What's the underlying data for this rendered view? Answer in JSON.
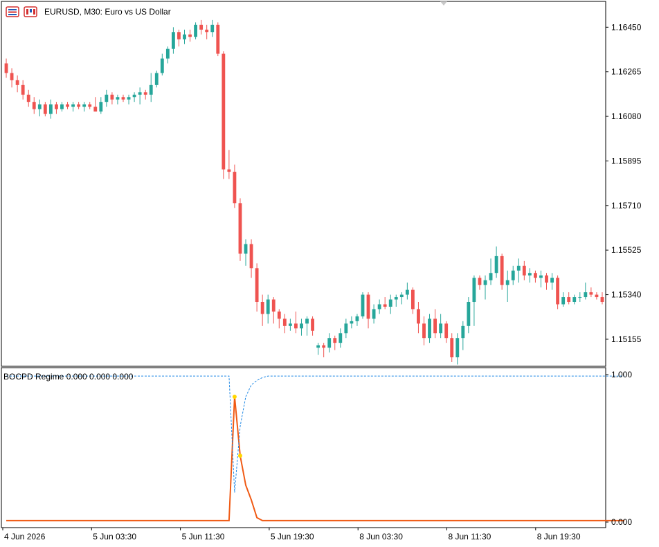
{
  "header": {
    "symbol_title": "EURUSD, M30:  Euro vs US Dollar",
    "icons": [
      "one-click-trading-icon",
      "chart-properties-icon"
    ]
  },
  "indicator": {
    "title": "BOCPD Regime 0.000 0.000 0.000",
    "axis_labels": [
      "1.000",
      "0.000"
    ]
  },
  "colors": {
    "bull": "#26a69a",
    "bear": "#ef5350",
    "grid": "#e8e8e8",
    "prob_line": "#f05a14",
    "dotted_line": "#1e88e5",
    "marker": "#ffd700"
  },
  "chart_data": [
    {
      "type": "candlestick",
      "symbol": "EURUSD",
      "timeframe": "M30",
      "ylim": [
        1.1506,
        1.1654
      ],
      "y_ticks": [
        "1.16450",
        "1.16265",
        "1.16080",
        "1.15895",
        "1.15710",
        "1.15525",
        "1.15340",
        "1.15155"
      ],
      "x_ticks": [
        "4 Jun 2026",
        "5 Jun 03:30",
        "5 Jun 11:30",
        "5 Jun 19:30",
        "8 Jun 03:30",
        "8 Jun 11:30",
        "8 Jun 19:30"
      ],
      "grid": true,
      "candles": [
        [
          1.163,
          1.1632,
          1.1624,
          1.1626
        ],
        [
          1.1626,
          1.1628,
          1.162,
          1.1623
        ],
        [
          1.1623,
          1.1625,
          1.1618,
          1.1621
        ],
        [
          1.1621,
          1.1623,
          1.1615,
          1.1617
        ],
        [
          1.1617,
          1.1619,
          1.1612,
          1.1614
        ],
        [
          1.1614,
          1.1616,
          1.1609,
          1.1611
        ],
        [
          1.1611,
          1.1615,
          1.1608,
          1.1613
        ],
        [
          1.1613,
          1.1614,
          1.1608,
          1.1609
        ],
        [
          1.1609,
          1.1615,
          1.1607,
          1.1613
        ],
        [
          1.1613,
          1.1614,
          1.1609,
          1.1611
        ],
        [
          1.1611,
          1.1614,
          1.161,
          1.1613
        ],
        [
          1.1613,
          1.1614,
          1.1611,
          1.1612
        ],
        [
          1.1612,
          1.1614,
          1.161,
          1.1613
        ],
        [
          1.1613,
          1.1614,
          1.1611,
          1.1612
        ],
        [
          1.1612,
          1.1614,
          1.161,
          1.1613
        ],
        [
          1.1613,
          1.1614,
          1.1611,
          1.1612
        ],
        [
          1.1612,
          1.1616,
          1.161,
          1.161
        ],
        [
          1.161,
          1.1616,
          1.1609,
          1.1614
        ],
        [
          1.1614,
          1.1619,
          1.1612,
          1.1617
        ],
        [
          1.1617,
          1.1618,
          1.1613,
          1.1615
        ],
        [
          1.1615,
          1.1617,
          1.1613,
          1.1616
        ],
        [
          1.1616,
          1.1617,
          1.1614,
          1.1615
        ],
        [
          1.1615,
          1.1617,
          1.1613,
          1.1616
        ],
        [
          1.1616,
          1.1618,
          1.1614,
          1.1617
        ],
        [
          1.1617,
          1.162,
          1.1613,
          1.1618
        ],
        [
          1.1618,
          1.1619,
          1.1615,
          1.1617
        ],
        [
          1.1617,
          1.1626,
          1.1614,
          1.1621
        ],
        [
          1.1621,
          1.1627,
          1.162,
          1.1626
        ],
        [
          1.1626,
          1.1634,
          1.1625,
          1.1632
        ],
        [
          1.1632,
          1.1637,
          1.163,
          1.1636
        ],
        [
          1.1636,
          1.1645,
          1.1634,
          1.1643
        ],
        [
          1.1643,
          1.1644,
          1.1637,
          1.164
        ],
        [
          1.164,
          1.1644,
          1.1638,
          1.1642
        ],
        [
          1.1642,
          1.1644,
          1.1639,
          1.1641
        ],
        [
          1.1641,
          1.1647,
          1.164,
          1.1646
        ],
        [
          1.1646,
          1.1648,
          1.1642,
          1.1644
        ],
        [
          1.1644,
          1.1646,
          1.164,
          1.1643
        ],
        [
          1.1643,
          1.1648,
          1.1641,
          1.1646
        ],
        [
          1.1646,
          1.1647,
          1.1633,
          1.1634
        ],
        [
          1.1634,
          1.1635,
          1.1582,
          1.1586
        ],
        [
          1.1586,
          1.1594,
          1.1582,
          1.1585
        ],
        [
          1.1585,
          1.1588,
          1.157,
          1.1572
        ],
        [
          1.1572,
          1.1574,
          1.1548,
          1.1551
        ],
        [
          1.1551,
          1.1557,
          1.1546,
          1.1555
        ],
        [
          1.1555,
          1.1557,
          1.1541,
          1.1545
        ],
        [
          1.1545,
          1.1547,
          1.1527,
          1.1531
        ],
        [
          1.1531,
          1.1534,
          1.1521,
          1.1526
        ],
        [
          1.1526,
          1.1534,
          1.1522,
          1.1532
        ],
        [
          1.1532,
          1.1533,
          1.1522,
          1.1527
        ],
        [
          1.1527,
          1.1528,
          1.152,
          1.1524
        ],
        [
          1.1524,
          1.1526,
          1.1518,
          1.1521
        ],
        [
          1.1521,
          1.1524,
          1.1519,
          1.1522
        ],
        [
          1.1522,
          1.1527,
          1.1518,
          1.152
        ],
        [
          1.152,
          1.1524,
          1.1517,
          1.1522
        ],
        [
          1.1522,
          1.1525,
          1.1517,
          1.1524
        ],
        [
          1.1524,
          1.1525,
          1.1517,
          1.1519
        ],
        [
          1.1512,
          1.1514,
          1.1509,
          1.1513
        ],
        [
          1.1513,
          1.1514,
          1.1508,
          1.1512
        ],
        [
          1.1512,
          1.1518,
          1.151,
          1.1516
        ],
        [
          1.1516,
          1.1517,
          1.1511,
          1.1514
        ],
        [
          1.1514,
          1.152,
          1.1512,
          1.1518
        ],
        [
          1.1518,
          1.1524,
          1.1516,
          1.1522
        ],
        [
          1.1522,
          1.1525,
          1.152,
          1.1523
        ],
        [
          1.1523,
          1.1526,
          1.1521,
          1.1525
        ],
        [
          1.1525,
          1.1535,
          1.1524,
          1.1534
        ],
        [
          1.1534,
          1.1535,
          1.152,
          1.1524
        ],
        [
          1.1524,
          1.153,
          1.1522,
          1.1528
        ],
        [
          1.1528,
          1.1532,
          1.1526,
          1.153
        ],
        [
          1.153,
          1.1533,
          1.1528,
          1.1529
        ],
        [
          1.1529,
          1.1534,
          1.1526,
          1.1532
        ],
        [
          1.1532,
          1.1534,
          1.1529,
          1.1533
        ],
        [
          1.1533,
          1.1535,
          1.153,
          1.1534
        ],
        [
          1.1534,
          1.1539,
          1.1532,
          1.1536
        ],
        [
          1.1536,
          1.1537,
          1.1526,
          1.1528
        ],
        [
          1.1528,
          1.1531,
          1.1518,
          1.1522
        ],
        [
          1.1522,
          1.1525,
          1.1513,
          1.1516
        ],
        [
          1.1516,
          1.1526,
          1.1514,
          1.1524
        ],
        [
          1.1524,
          1.1528,
          1.1516,
          1.1518
        ],
        [
          1.1518,
          1.1526,
          1.1516,
          1.1522
        ],
        [
          1.1522,
          1.1523,
          1.1514,
          1.1516
        ],
        [
          1.1516,
          1.1518,
          1.1506,
          1.1508
        ],
        [
          1.1508,
          1.1518,
          1.1505,
          1.1516
        ],
        [
          1.1516,
          1.1523,
          1.1511,
          1.1521
        ],
        [
          1.1521,
          1.1533,
          1.1518,
          1.1531
        ],
        [
          1.1531,
          1.1542,
          1.1521,
          1.1541
        ],
        [
          1.1541,
          1.1542,
          1.1536,
          1.1538
        ],
        [
          1.1538,
          1.1542,
          1.1532,
          1.154
        ],
        [
          1.154,
          1.1549,
          1.1538,
          1.1543
        ],
        [
          1.1543,
          1.1554,
          1.1541,
          1.155
        ],
        [
          1.155,
          1.1551,
          1.1536,
          1.1538
        ],
        [
          1.1538,
          1.1544,
          1.1531,
          1.154
        ],
        [
          1.154,
          1.1546,
          1.1538,
          1.1544
        ],
        [
          1.1544,
          1.1549,
          1.1539,
          1.1546
        ],
        [
          1.1546,
          1.1548,
          1.154,
          1.1542
        ],
        [
          1.1542,
          1.1545,
          1.1539,
          1.1543
        ],
        [
          1.1543,
          1.1544,
          1.1539,
          1.1541
        ],
        [
          1.1541,
          1.1544,
          1.1537,
          1.1542
        ],
        [
          1.1542,
          1.1543,
          1.1536,
          1.1539
        ],
        [
          1.1539,
          1.1543,
          1.1536,
          1.1541
        ],
        [
          1.1541,
          1.1542,
          1.1528,
          1.153
        ],
        [
          1.153,
          1.1535,
          1.1529,
          1.1533
        ],
        [
          1.1533,
          1.1535,
          1.153,
          1.1531
        ],
        [
          1.1531,
          1.1534,
          1.153,
          1.1533
        ],
        [
          1.1533,
          1.1535,
          1.1531,
          1.1533
        ],
        [
          1.1533,
          1.1539,
          1.1532,
          1.1535
        ],
        [
          1.1535,
          1.1537,
          1.1533,
          1.1534
        ],
        [
          1.1534,
          1.1535,
          1.1532,
          1.1533
        ],
        [
          1.1533,
          1.1535,
          1.153,
          1.1531
        ]
      ]
    },
    {
      "type": "line",
      "title": "BOCPD Regime 0.000 0.000 0.000",
      "ylim": [
        0,
        1
      ],
      "y_ticks": [
        "1.000",
        "0.000"
      ],
      "series": [
        {
          "style": "solid",
          "values": [
            0.01,
            0.01,
            0.01,
            0.01,
            0.01,
            0.01,
            0.01,
            0.01,
            0.01,
            0.01,
            0.01,
            0.01,
            0.01,
            0.01,
            0.01,
            0.01,
            0.01,
            0.01,
            0.01,
            0.01,
            0.01,
            0.01,
            0.01,
            0.01,
            0.01,
            0.01,
            0.01,
            0.01,
            0.01,
            0.01,
            0.01,
            0.01,
            0.01,
            0.01,
            0.01,
            0.01,
            0.01,
            0.01,
            0.01,
            0.01,
            0.01,
            0.85,
            0.45,
            0.25,
            0.15,
            0.03,
            0.01,
            0.01,
            0.01,
            0.01,
            0.01,
            0.01,
            0.01,
            0.01,
            0.01,
            0.01,
            0.01,
            0.01,
            0.01,
            0.01,
            0.01,
            0.01,
            0.01,
            0.01,
            0.01,
            0.01,
            0.01,
            0.01,
            0.01,
            0.01,
            0.01,
            0.01,
            0.01,
            0.01,
            0.01,
            0.01,
            0.01,
            0.01,
            0.01,
            0.01,
            0.01,
            0.01,
            0.01,
            0.01,
            0.01,
            0.01,
            0.01,
            0.01,
            0.01,
            0.01,
            0.01,
            0.01,
            0.01,
            0.01,
            0.01,
            0.01,
            0.01,
            0.01,
            0.01,
            0.01,
            0.01,
            0.01,
            0.01,
            0.01,
            0.01,
            0.01,
            0.01,
            0.01,
            0.01,
            0.01,
            0.01,
            0.01
          ]
        },
        {
          "style": "dotted",
          "values": [
            0.99,
            0.99,
            0.99,
            0.99,
            0.99,
            0.99,
            0.99,
            0.99,
            0.99,
            0.99,
            0.99,
            0.99,
            0.99,
            0.99,
            0.99,
            0.99,
            0.99,
            0.99,
            0.99,
            0.99,
            0.99,
            0.99,
            0.99,
            0.99,
            0.99,
            0.99,
            0.99,
            0.99,
            0.99,
            0.99,
            0.99,
            0.99,
            0.99,
            0.99,
            0.99,
            0.99,
            0.99,
            0.99,
            0.99,
            0.99,
            0.99,
            0.2,
            0.65,
            0.85,
            0.93,
            0.96,
            0.98,
            0.99,
            0.99,
            0.99,
            0.99,
            0.99,
            0.99,
            0.99,
            0.99,
            0.99,
            0.99,
            0.99,
            0.99,
            0.99,
            0.99,
            0.99,
            0.99,
            0.99,
            0.99,
            0.99,
            0.99,
            0.99,
            0.99,
            0.99,
            0.99,
            0.99,
            0.99,
            0.99,
            0.99,
            0.99,
            0.99,
            0.99,
            0.99,
            0.99,
            0.99,
            0.99,
            0.99,
            0.99,
            0.99,
            0.99,
            0.99,
            0.99,
            0.99,
            0.99,
            0.99,
            0.99,
            0.99,
            0.99,
            0.99,
            0.99,
            0.99,
            0.99,
            0.99,
            0.99,
            0.99,
            0.99,
            0.99,
            0.99,
            0.99,
            0.99,
            0.99,
            0.99,
            0.99,
            0.99,
            0.99,
            0.99
          ]
        }
      ],
      "markers": [
        {
          "index": 41,
          "value": 0.85
        },
        {
          "index": 42,
          "value": 0.45
        }
      ]
    }
  ]
}
